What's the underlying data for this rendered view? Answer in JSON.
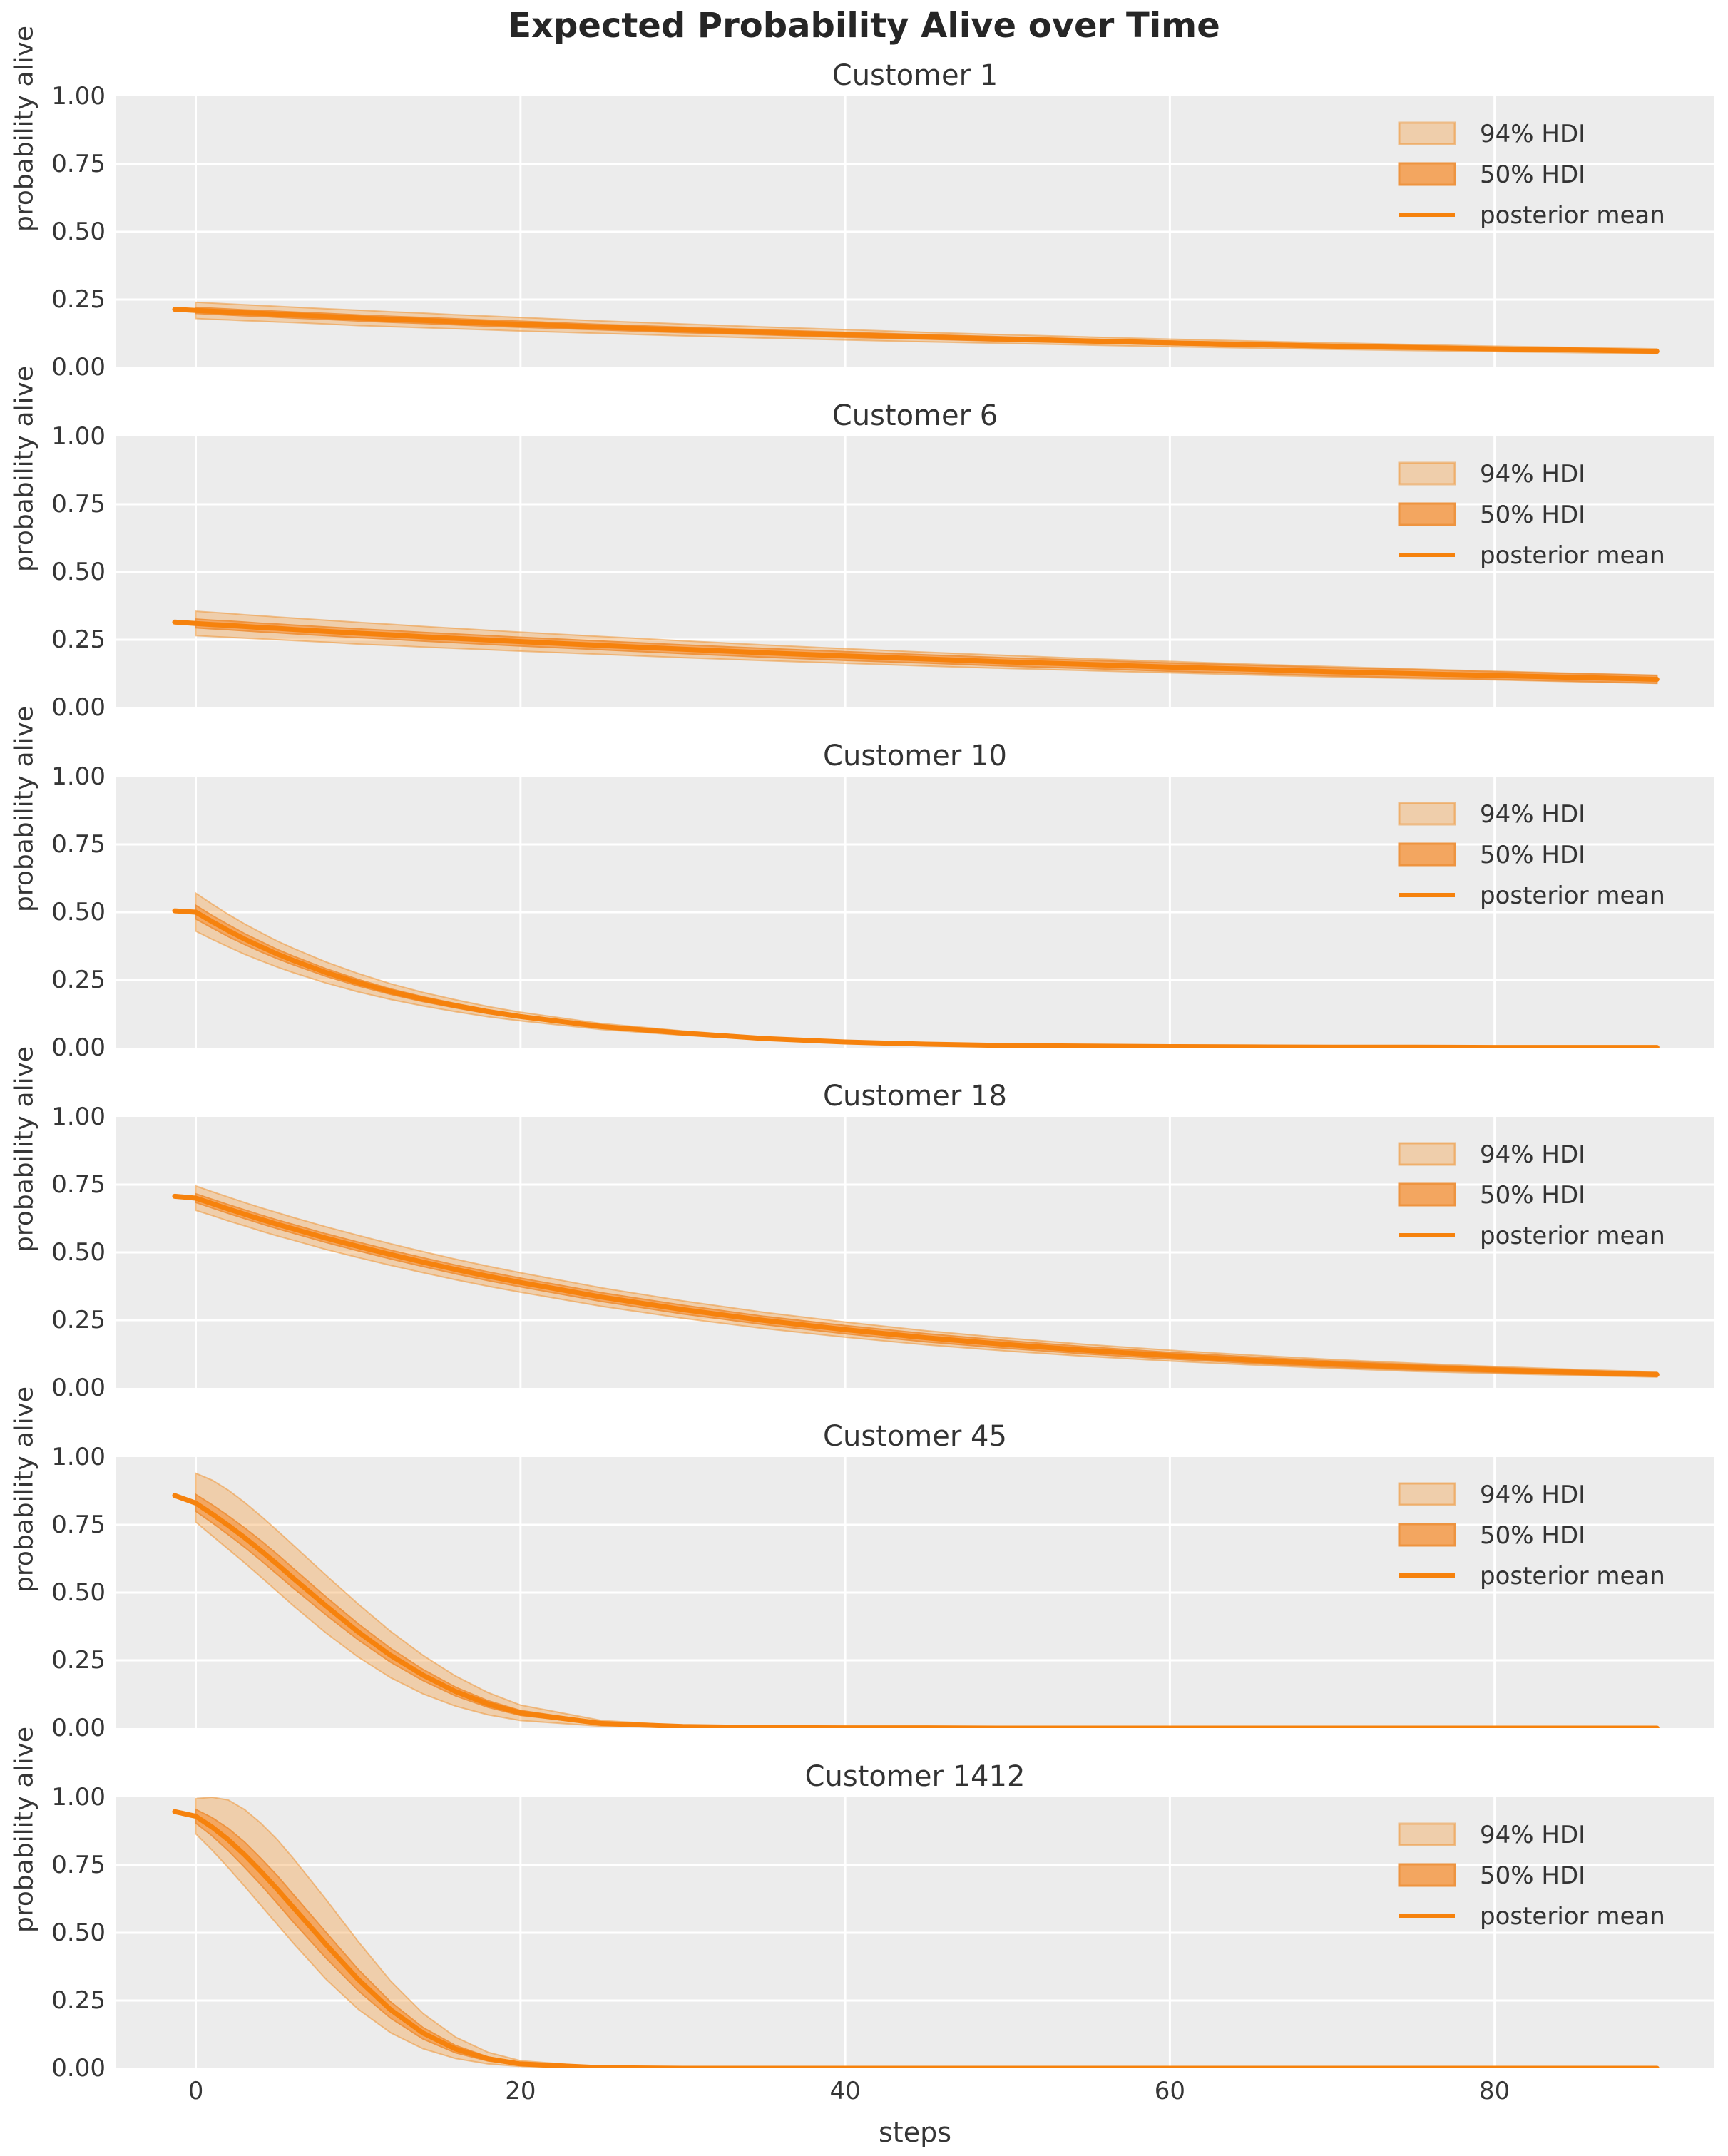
{
  "figure": {
    "title": "Expected Probability Alive over Time",
    "xlabel": "steps",
    "ylabel": "probability alive",
    "y_tick_labels": [
      "1.00",
      "0.75",
      "0.50",
      "0.25",
      "0.00"
    ],
    "x_tick_labels": [
      "0",
      "20",
      "40",
      "60",
      "80"
    ],
    "legend_labels": [
      "94% HDI",
      "50% HDI",
      "posterior mean"
    ],
    "colors": {
      "panel_background": "#ECECEC",
      "grid": "#FFFFFF",
      "posterior_mean": "#F6820D",
      "hdi_50_fill": "#F3A660",
      "hdi_50_edge": "#EE9440",
      "hdi_94_fill": "rgba(244,158,66,0.38)",
      "hdi_94_edge": "rgba(238,150,55,0.55)",
      "text": "#333333"
    }
  },
  "chart_data": {
    "type": "line",
    "suptitle": "Expected Probability Alive over Time",
    "xlabel": "steps",
    "ylabel": "probability alive",
    "xlim": [
      -4.9,
      93.5
    ],
    "ylim": [
      0,
      1
    ],
    "x_ticks": [
      0,
      20,
      40,
      60,
      80
    ],
    "y_ticks": [
      1.0,
      0.75,
      0.5,
      0.25,
      0.0
    ],
    "grid": true,
    "legend_position": "upper right",
    "legend": [
      "94% HDI",
      "50% HDI",
      "posterior mean"
    ],
    "steps": [
      0,
      1,
      2,
      3,
      4,
      5,
      6,
      8,
      10,
      12,
      14,
      16,
      18,
      20,
      25,
      30,
      35,
      40,
      45,
      50,
      55,
      60,
      65,
      70,
      75,
      80,
      85,
      90
    ],
    "subplots": [
      {
        "title": "Customer 1",
        "lead": 0.214,
        "mean": [
          0.21,
          0.207,
          0.204,
          0.201,
          0.199,
          0.196,
          0.193,
          0.188,
          0.182,
          0.177,
          0.173,
          0.168,
          0.163,
          0.159,
          0.148,
          0.138,
          0.129,
          0.12,
          0.112,
          0.104,
          0.097,
          0.09,
          0.084,
          0.078,
          0.073,
          0.068,
          0.064,
          0.059
        ],
        "hdi94_upper": [
          0.24,
          0.237,
          0.234,
          0.231,
          0.228,
          0.225,
          0.222,
          0.216,
          0.211,
          0.205,
          0.2,
          0.194,
          0.189,
          0.184,
          0.171,
          0.16,
          0.149,
          0.139,
          0.129,
          0.12,
          0.112,
          0.104,
          0.097,
          0.09,
          0.084,
          0.078,
          0.073,
          0.068
        ],
        "hdi94_lower": [
          0.18,
          0.177,
          0.175,
          0.172,
          0.17,
          0.167,
          0.165,
          0.16,
          0.154,
          0.15,
          0.146,
          0.142,
          0.138,
          0.134,
          0.125,
          0.116,
          0.108,
          0.101,
          0.094,
          0.088,
          0.082,
          0.076,
          0.071,
          0.066,
          0.062,
          0.058,
          0.054,
          0.05
        ],
        "hdi50_upper": [
          0.221,
          0.218,
          0.215,
          0.212,
          0.21,
          0.207,
          0.204,
          0.199,
          0.193,
          0.188,
          0.184,
          0.179,
          0.174,
          0.17,
          0.158,
          0.148,
          0.138,
          0.129,
          0.12,
          0.112,
          0.104,
          0.097,
          0.091,
          0.084,
          0.079,
          0.074,
          0.069,
          0.064
        ],
        "hdi50_lower": [
          0.199,
          0.196,
          0.193,
          0.19,
          0.188,
          0.185,
          0.182,
          0.177,
          0.171,
          0.166,
          0.162,
          0.157,
          0.152,
          0.148,
          0.138,
          0.128,
          0.12,
          0.111,
          0.104,
          0.096,
          0.09,
          0.083,
          0.077,
          0.072,
          0.067,
          0.062,
          0.059,
          0.054
        ]
      },
      {
        "title": "Customer 6",
        "lead": 0.315,
        "mean": [
          0.31,
          0.306,
          0.303,
          0.299,
          0.295,
          0.292,
          0.288,
          0.281,
          0.274,
          0.268,
          0.261,
          0.255,
          0.249,
          0.243,
          0.229,
          0.215,
          0.202,
          0.19,
          0.179,
          0.168,
          0.159,
          0.149,
          0.141,
          0.132,
          0.125,
          0.118,
          0.111,
          0.104
        ],
        "hdi94_upper": [
          0.355,
          0.351,
          0.347,
          0.342,
          0.338,
          0.334,
          0.33,
          0.322,
          0.314,
          0.307,
          0.299,
          0.292,
          0.285,
          0.278,
          0.262,
          0.246,
          0.231,
          0.217,
          0.204,
          0.192,
          0.18,
          0.17,
          0.16,
          0.151,
          0.142,
          0.134,
          0.126,
          0.119
        ],
        "hdi94_lower": [
          0.265,
          0.262,
          0.259,
          0.256,
          0.253,
          0.25,
          0.247,
          0.241,
          0.234,
          0.229,
          0.223,
          0.218,
          0.213,
          0.208,
          0.196,
          0.184,
          0.173,
          0.163,
          0.153,
          0.144,
          0.136,
          0.128,
          0.12,
          0.113,
          0.107,
          0.102,
          0.095,
          0.089
        ],
        "hdi50_upper": [
          0.326,
          0.322,
          0.319,
          0.315,
          0.311,
          0.308,
          0.304,
          0.297,
          0.29,
          0.284,
          0.277,
          0.271,
          0.265,
          0.259,
          0.245,
          0.231,
          0.218,
          0.206,
          0.194,
          0.183,
          0.174,
          0.164,
          0.156,
          0.147,
          0.14,
          0.132,
          0.125,
          0.118
        ],
        "hdi50_lower": [
          0.294,
          0.29,
          0.287,
          0.283,
          0.279,
          0.276,
          0.272,
          0.265,
          0.258,
          0.252,
          0.245,
          0.239,
          0.233,
          0.227,
          0.213,
          0.199,
          0.186,
          0.174,
          0.164,
          0.153,
          0.144,
          0.134,
          0.126,
          0.117,
          0.11,
          0.104,
          0.097,
          0.09
        ]
      },
      {
        "title": "Customer 10",
        "lead": 0.505,
        "mean": [
          0.5,
          0.465,
          0.432,
          0.401,
          0.373,
          0.346,
          0.322,
          0.278,
          0.24,
          0.207,
          0.179,
          0.155,
          0.133,
          0.115,
          0.078,
          0.054,
          0.034,
          0.021,
          0.013,
          0.008,
          0.006,
          0.004,
          0.003,
          0.002,
          0.002,
          0.001,
          0.001,
          0.001
        ],
        "hdi94_upper": [
          0.57,
          0.53,
          0.492,
          0.457,
          0.425,
          0.394,
          0.367,
          0.317,
          0.274,
          0.236,
          0.204,
          0.177,
          0.152,
          0.131,
          0.089,
          0.062,
          0.039,
          0.024,
          0.015,
          0.009,
          0.007,
          0.005,
          0.003,
          0.002,
          0.002,
          0.001,
          0.001,
          0.001
        ],
        "hdi94_lower": [
          0.43,
          0.4,
          0.372,
          0.345,
          0.321,
          0.298,
          0.277,
          0.239,
          0.206,
          0.178,
          0.154,
          0.133,
          0.114,
          0.099,
          0.067,
          0.046,
          0.029,
          0.018,
          0.011,
          0.007,
          0.005,
          0.003,
          0.003,
          0.002,
          0.002,
          0.001,
          0.001,
          0.001
        ],
        "hdi50_upper": [
          0.525,
          0.488,
          0.454,
          0.421,
          0.392,
          0.363,
          0.338,
          0.292,
          0.252,
          0.217,
          0.188,
          0.163,
          0.14,
          0.121,
          0.082,
          0.057,
          0.036,
          0.022,
          0.014,
          0.008,
          0.006,
          0.004,
          0.003,
          0.002,
          0.002,
          0.001,
          0.001,
          0.001
        ],
        "hdi50_lower": [
          0.475,
          0.442,
          0.41,
          0.381,
          0.354,
          0.329,
          0.306,
          0.264,
          0.228,
          0.197,
          0.17,
          0.147,
          0.126,
          0.109,
          0.074,
          0.051,
          0.032,
          0.02,
          0.012,
          0.008,
          0.006,
          0.004,
          0.003,
          0.002,
          0.002,
          0.001,
          0.001,
          0.001
        ]
      },
      {
        "title": "Customer 18",
        "lead": 0.707,
        "mean": [
          0.7,
          0.68,
          0.66,
          0.641,
          0.622,
          0.604,
          0.587,
          0.553,
          0.522,
          0.492,
          0.464,
          0.437,
          0.412,
          0.389,
          0.335,
          0.289,
          0.249,
          0.215,
          0.185,
          0.16,
          0.138,
          0.119,
          0.102,
          0.088,
          0.076,
          0.066,
          0.057,
          0.049
        ],
        "hdi94_upper": [
          0.745,
          0.724,
          0.704,
          0.684,
          0.665,
          0.647,
          0.629,
          0.595,
          0.563,
          0.532,
          0.503,
          0.475,
          0.449,
          0.425,
          0.369,
          0.321,
          0.279,
          0.243,
          0.211,
          0.184,
          0.16,
          0.139,
          0.121,
          0.105,
          0.091,
          0.079,
          0.068,
          0.059
        ],
        "hdi94_lower": [
          0.655,
          0.636,
          0.616,
          0.598,
          0.579,
          0.561,
          0.545,
          0.511,
          0.481,
          0.452,
          0.425,
          0.399,
          0.375,
          0.353,
          0.301,
          0.257,
          0.219,
          0.187,
          0.159,
          0.136,
          0.116,
          0.099,
          0.085,
          0.072,
          0.061,
          0.053,
          0.046,
          0.04
        ],
        "hdi50_upper": [
          0.716,
          0.696,
          0.676,
          0.657,
          0.638,
          0.62,
          0.603,
          0.569,
          0.538,
          0.508,
          0.48,
          0.453,
          0.428,
          0.405,
          0.351,
          0.305,
          0.264,
          0.23,
          0.2,
          0.174,
          0.151,
          0.131,
          0.114,
          0.099,
          0.086,
          0.075,
          0.065,
          0.056
        ],
        "hdi50_lower": [
          0.684,
          0.664,
          0.644,
          0.625,
          0.606,
          0.588,
          0.571,
          0.537,
          0.506,
          0.476,
          0.448,
          0.421,
          0.396,
          0.373,
          0.319,
          0.273,
          0.234,
          0.2,
          0.17,
          0.146,
          0.125,
          0.107,
          0.091,
          0.077,
          0.066,
          0.057,
          0.049,
          0.042
        ]
      },
      {
        "title": "Customer 45",
        "lead": 0.858,
        "mean": [
          0.83,
          0.79,
          0.748,
          0.703,
          0.655,
          0.605,
          0.553,
          0.452,
          0.355,
          0.268,
          0.195,
          0.135,
          0.089,
          0.056,
          0.017,
          0.006,
          0.002,
          0.001,
          0.001,
          0.0,
          0.0,
          0.0,
          0.0,
          0.0,
          0.0,
          0.0,
          0.0,
          0.0
        ],
        "hdi94_upper": [
          0.94,
          0.915,
          0.878,
          0.833,
          0.783,
          0.73,
          0.675,
          0.565,
          0.458,
          0.357,
          0.268,
          0.192,
          0.131,
          0.085,
          0.028,
          0.01,
          0.004,
          0.002,
          0.001,
          0.001,
          0.001,
          0.001,
          0.001,
          0.001,
          0.001,
          0.001,
          0.001,
          0.001
        ],
        "hdi94_lower": [
          0.76,
          0.71,
          0.66,
          0.61,
          0.558,
          0.505,
          0.452,
          0.352,
          0.262,
          0.186,
          0.126,
          0.081,
          0.049,
          0.028,
          0.007,
          0.002,
          0.001,
          0.0,
          0.0,
          0.0,
          0.0,
          0.0,
          0.0,
          0.0,
          0.0,
          0.0,
          0.0,
          0.0
        ],
        "hdi50_upper": [
          0.862,
          0.824,
          0.783,
          0.739,
          0.692,
          0.642,
          0.589,
          0.485,
          0.385,
          0.294,
          0.216,
          0.151,
          0.101,
          0.065,
          0.021,
          0.007,
          0.003,
          0.001,
          0.001,
          0.0,
          0.0,
          0.0,
          0.0,
          0.0,
          0.0,
          0.0,
          0.0,
          0.0
        ],
        "hdi50_lower": [
          0.8,
          0.758,
          0.714,
          0.668,
          0.619,
          0.568,
          0.517,
          0.419,
          0.326,
          0.243,
          0.175,
          0.119,
          0.077,
          0.047,
          0.013,
          0.004,
          0.001,
          0.0,
          0.0,
          0.0,
          0.0,
          0.0,
          0.0,
          0.0,
          0.0,
          0.0,
          0.0,
          0.0
        ]
      },
      {
        "title": "Customer 1412",
        "lead": 0.947,
        "mean": [
          0.93,
          0.89,
          0.843,
          0.788,
          0.727,
          0.662,
          0.594,
          0.458,
          0.328,
          0.216,
          0.13,
          0.071,
          0.035,
          0.016,
          0.002,
          0.0,
          0.0,
          0.0,
          0.0,
          0.0,
          0.0,
          0.0,
          0.0,
          0.0,
          0.0,
          0.0,
          0.0,
          0.0
        ],
        "hdi94_upper": [
          0.995,
          1.0,
          0.99,
          0.955,
          0.905,
          0.845,
          0.775,
          0.625,
          0.468,
          0.322,
          0.202,
          0.115,
          0.059,
          0.028,
          0.004,
          0.001,
          0.001,
          0.0,
          0.0,
          0.0,
          0.0,
          0.0,
          0.0,
          0.0,
          0.0,
          0.0,
          0.0,
          0.0
        ],
        "hdi94_lower": [
          0.865,
          0.805,
          0.74,
          0.672,
          0.602,
          0.532,
          0.462,
          0.33,
          0.218,
          0.131,
          0.072,
          0.036,
          0.016,
          0.007,
          0.001,
          0.0,
          0.0,
          0.0,
          0.0,
          0.0,
          0.0,
          0.0,
          0.0,
          0.0,
          0.0,
          0.0,
          0.0,
          0.0
        ],
        "hdi50_upper": [
          0.955,
          0.925,
          0.885,
          0.835,
          0.775,
          0.712,
          0.642,
          0.503,
          0.365,
          0.245,
          0.15,
          0.084,
          0.042,
          0.019,
          0.002,
          0.001,
          0.0,
          0.0,
          0.0,
          0.0,
          0.0,
          0.0,
          0.0,
          0.0,
          0.0,
          0.0,
          0.0,
          0.0
        ],
        "hdi50_lower": [
          0.905,
          0.858,
          0.803,
          0.742,
          0.678,
          0.61,
          0.54,
          0.408,
          0.287,
          0.185,
          0.108,
          0.057,
          0.027,
          0.012,
          0.001,
          0.0,
          0.0,
          0.0,
          0.0,
          0.0,
          0.0,
          0.0,
          0.0,
          0.0,
          0.0,
          0.0,
          0.0,
          0.0
        ]
      }
    ]
  }
}
